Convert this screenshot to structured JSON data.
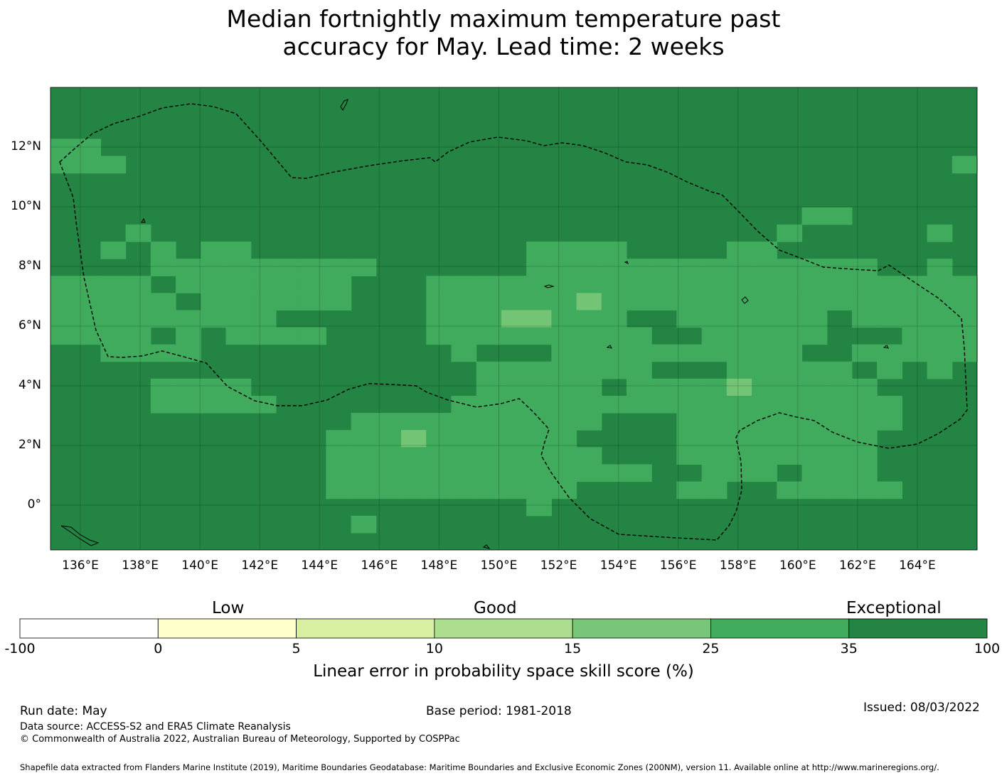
{
  "title_line1": "Median fortnightly maximum temperature past",
  "title_line2": "accuracy for May. Lead time: 2 weeks",
  "colors": {
    "c1": "#74c476",
    "c2": "#41ab5d",
    "c3": "#238443",
    "c_pale": "#addd8e",
    "border": "#000000"
  },
  "map": {
    "lon_labels": [
      "136°E",
      "138°E",
      "140°E",
      "142°E",
      "144°E",
      "146°E",
      "148°E",
      "150°E",
      "152°E",
      "154°E",
      "156°E",
      "158°E",
      "160°E",
      "162°E",
      "164°E"
    ],
    "lat_labels": [
      "12°N",
      "10°N",
      "8°N",
      "6°N",
      "4°N",
      "2°N",
      "0°"
    ],
    "lon_range": [
      135,
      166
    ],
    "lat_range": [
      -1.5,
      14
    ],
    "lon_ticks": [
      136,
      138,
      140,
      142,
      144,
      146,
      148,
      150,
      152,
      154,
      156,
      158,
      160,
      162,
      164
    ],
    "lat_ticks": [
      12,
      10,
      8,
      6,
      4,
      2,
      0
    ],
    "cell_size_deg": 0.833,
    "grid": [
      "3333333333333333333333333333333333333",
      "3333333333333333333333333333333333333",
      "3333333333333333333333333333333333333",
      "2233333333333333333333333333333333333",
      "2223333333333333333333333333333333332",
      "3333333333333333333333333333333333333",
      "3333333333333333333333333333333333333",
      "3333333333333333333333333333332233333",
      "3332333333333333333333333333323333323",
      "3323232233333333333222233332233333333",
      "3333222222222333333222222222222223323",
      "2222322222223332222222222222222222222",
      "2222232222223332222221222222222222222",
      "2222222223333332221122233222222322222",
      "2222323222233332222222223322222333222",
      "3322223333333333233322222222223322222",
      "3333333333333333322222223332222232323",
      "3333222233333333322222322221222223333",
      "3333222223333333222222222222222222333",
      "3333333333332222222222333222222222333",
      "3333333333322212222223333222222223333",
      "3333333333322222222222333222222223333",
      "3333333333322222222222223322232223333",
      "3333333333322222222223333223322222333",
      "3333333333333333333233333333333333333",
      "3333333333332333333333333333333333333",
      "3333333333333333333333333333333333333"
    ]
  },
  "colorbar": {
    "low_label": "Low",
    "good_label": "Good",
    "exceptional_label": "Exceptional",
    "ticks": [
      "-100",
      "0",
      "5",
      "10",
      "15",
      "25",
      "35",
      "100"
    ],
    "colors": [
      "#ffffff",
      "#ffffcc",
      "#d9f0a3",
      "#addd8e",
      "#78c679",
      "#41ab5d",
      "#238443"
    ],
    "label": "Linear error in probability space skill score (%)"
  },
  "footer": {
    "run_date": "Run date: May",
    "base_period": "Base period: 1981-2018",
    "issued": "Issued: 08/03/2022",
    "data_source": "Data source: ACCESS-S2 and ERA5 Climate Reanalysis",
    "copyright": "© Commonwealth of Australia 2022, Australian Bureau of Meteorology, Supported by COSPPac",
    "shapefile": "Shapefile data extracted from Flanders Marine Institute (2019), Maritime Boundaries Geodatabase: Maritime Boundaries and Exclusive Economic Zones (200NM), version 11. Available online at http://www.marineregions.org/."
  }
}
